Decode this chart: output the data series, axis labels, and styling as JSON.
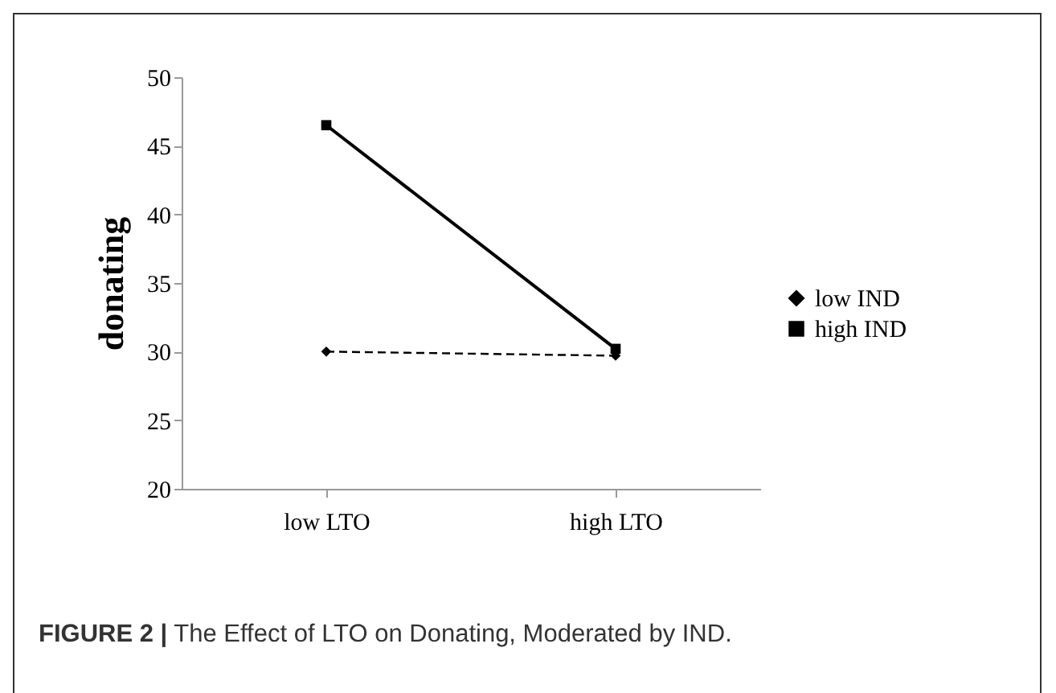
{
  "chart_data": {
    "type": "line",
    "ylabel": "donating",
    "categories": [
      "low LTO",
      "high LTO"
    ],
    "series": [
      {
        "name": "low IND",
        "color": "#000000",
        "values": [
          30.0,
          29.7
        ],
        "marker": "diamond",
        "line_style": "dashed"
      },
      {
        "name": "high IND",
        "color": "#000000",
        "values": [
          46.5,
          30.2
        ],
        "marker": "square",
        "line_style": "solid"
      }
    ],
    "ylim": [
      20,
      50
    ],
    "yticks": [
      20,
      25,
      30,
      35,
      40,
      45,
      50
    ],
    "grid": false,
    "legend": "right",
    "annotations": [
      "FIGURE 2 | The Effect of LTO on Donating, Moderated by IND."
    ]
  }
}
